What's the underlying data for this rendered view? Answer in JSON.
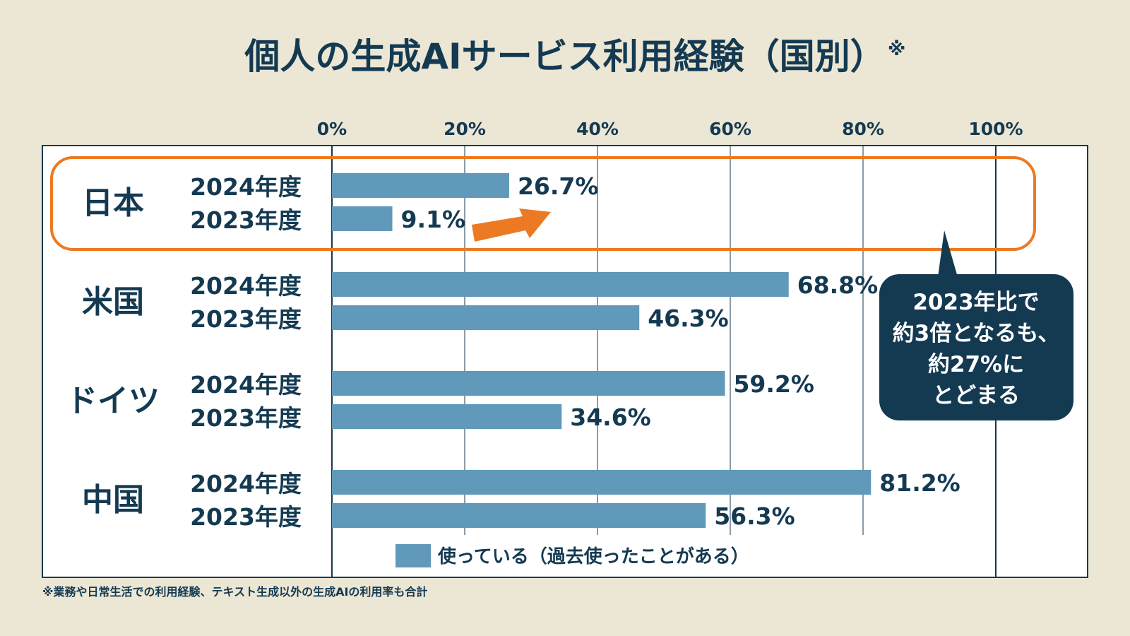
{
  "title": "個人の生成AIサービス利用経験（国別）",
  "title_mark": "※",
  "footnote": "※業務や日常生活での利用経験、テキスト生成以外の生成AIの利用率も合計",
  "callout": {
    "lines": [
      "2023年比で",
      "約3倍となるも、",
      "約27%に",
      "とどまる"
    ]
  },
  "colors": {
    "background": "#ece6d4",
    "bar": "#6099b9",
    "text": "#143a52",
    "highlight": "#ec7a22",
    "callout": "#143a52"
  },
  "chart_data": {
    "type": "bar",
    "orientation": "horizontal",
    "categories": [
      "日本",
      "米国",
      "ドイツ",
      "中国"
    ],
    "series": [
      {
        "name": "2024年度",
        "values": [
          26.7,
          68.8,
          59.2,
          81.2
        ]
      },
      {
        "name": "2023年度",
        "values": [
          9.1,
          46.3,
          34.6,
          56.3
        ]
      }
    ],
    "value_labels": {
      "2024年度": [
        "26.7%",
        "68.8%",
        "59.2%",
        "81.2%"
      ],
      "2023年度": [
        "9.1%",
        "46.3%",
        "34.6%",
        "56.3%"
      ]
    },
    "xlim": [
      0,
      100
    ],
    "xticks": [
      0,
      20,
      40,
      60,
      80,
      100
    ],
    "xtick_labels": [
      "0%",
      "20%",
      "40%",
      "60%",
      "80%",
      "100%"
    ],
    "grid": true,
    "legend": {
      "label": "使っている（過去使ったことがある）",
      "placement": "bottom"
    },
    "highlight_category": "日本"
  }
}
